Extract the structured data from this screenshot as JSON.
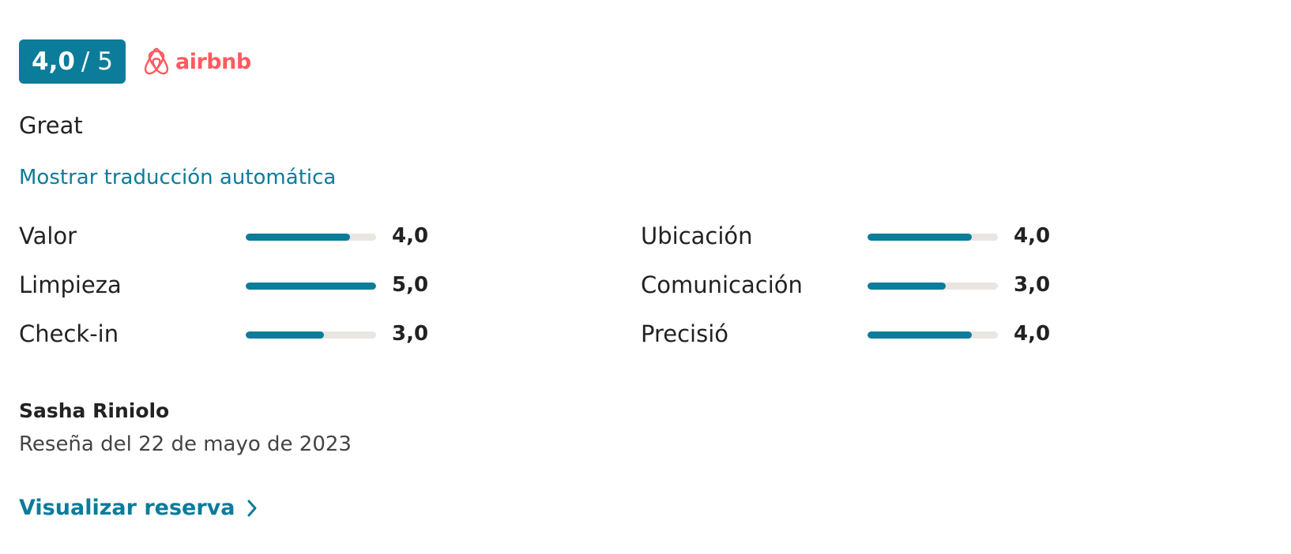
{
  "rating": {
    "value": 4,
    "label": "4,0",
    "out_of": 5,
    "out_of_label": "/ 5"
  },
  "source": "airbnb",
  "review_text": "Great",
  "translate_link": "Mostrar traducción automática",
  "scores": [
    {
      "name": "Valor",
      "value": 4,
      "label": "4,0"
    },
    {
      "name": "Limpieza",
      "value": 5,
      "label": "5,0"
    },
    {
      "name": "Check-in",
      "value": 3,
      "label": "3,0"
    },
    {
      "name": "Ubicación",
      "value": 4,
      "label": "4,0"
    },
    {
      "name": "Comunicación",
      "value": 3,
      "label": "3,0"
    },
    {
      "name": "Precisió",
      "value": 4,
      "label": "4,0"
    }
  ],
  "author": "Sasha Riniolo",
  "date": "Reseña del 22 de mayo de 2023",
  "action_link": "Visualizar reserva"
}
